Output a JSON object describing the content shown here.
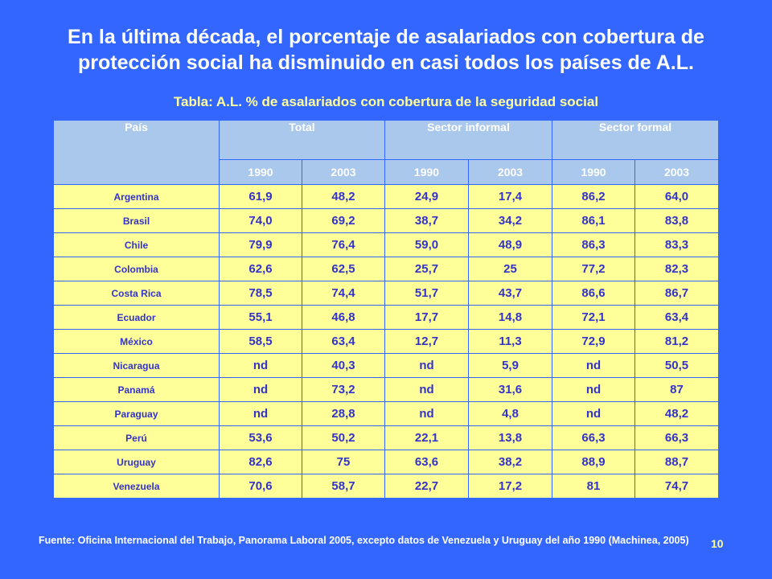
{
  "title_line1": "En la última década, el porcentaje de asalariados con cobertura de",
  "title_line2": "protección social ha disminuido en casi todos los países de A.L.",
  "subtitle": "Tabla: A.L. % de asalariados con cobertura de la seguridad social",
  "table": {
    "headers": {
      "country": "País",
      "total": "Total",
      "informal": "Sector informal",
      "formal": "Sector formal"
    },
    "years": [
      "1990",
      "2003",
      "1990",
      "2003",
      "1990",
      "2003"
    ],
    "rows": [
      {
        "country": "Argentina",
        "values": [
          "61,9",
          "48,2",
          "24,9",
          "17,4",
          "86,2",
          "64,0"
        ]
      },
      {
        "country": "Brasil",
        "values": [
          "74,0",
          "69,2",
          "38,7",
          "34,2",
          "86,1",
          "83,8"
        ]
      },
      {
        "country": "Chile",
        "values": [
          "79,9",
          "76,4",
          "59,0",
          "48,9",
          "86,3",
          "83,3"
        ]
      },
      {
        "country": "Colombia",
        "values": [
          "62,6",
          "62,5",
          "25,7",
          "25",
          "77,2",
          "82,3"
        ]
      },
      {
        "country": "Costa Rica",
        "values": [
          "78,5",
          "74,4",
          "51,7",
          "43,7",
          "86,6",
          "86,7"
        ]
      },
      {
        "country": "Ecuador",
        "values": [
          "55,1",
          "46,8",
          "17,7",
          "14,8",
          "72,1",
          "63,4"
        ]
      },
      {
        "country": "México",
        "values": [
          "58,5",
          "63,4",
          "12,7",
          "11,3",
          "72,9",
          "81,2"
        ]
      },
      {
        "country": "Nicaragua",
        "values": [
          "nd",
          "40,3",
          "nd",
          "5,9",
          "nd",
          "50,5"
        ]
      },
      {
        "country": "Panamá",
        "values": [
          "nd",
          "73,2",
          "nd",
          "31,6",
          "nd",
          "87"
        ]
      },
      {
        "country": "Paraguay",
        "values": [
          "nd",
          "28,8",
          "nd",
          "4,8",
          "nd",
          "48,2"
        ]
      },
      {
        "country": "Perú",
        "values": [
          "53,6",
          "50,2",
          "22,1",
          "13,8",
          "66,3",
          "66,3"
        ]
      },
      {
        "country": "Uruguay",
        "values": [
          "82,6",
          "75",
          "63,6",
          "38,2",
          "88,9",
          "88,7"
        ]
      },
      {
        "country": "Venezuela",
        "values": [
          "70,6",
          "58,7",
          "22,7",
          "17,2",
          "81",
          "74,7"
        ]
      }
    ]
  },
  "source": "Fuente: Oficina Internacional del Trabajo, Panorama Laboral 2005, excepto datos de Venezuela  y Uruguay del año 1990 (Machinea, 2005)",
  "page_number": "10",
  "colors": {
    "background": "#3366ff",
    "header_fill": "#aac8ec",
    "cell_fill": "#ffff99",
    "cell_text": "#3333cc",
    "subtitle_text": "#ffff99"
  }
}
